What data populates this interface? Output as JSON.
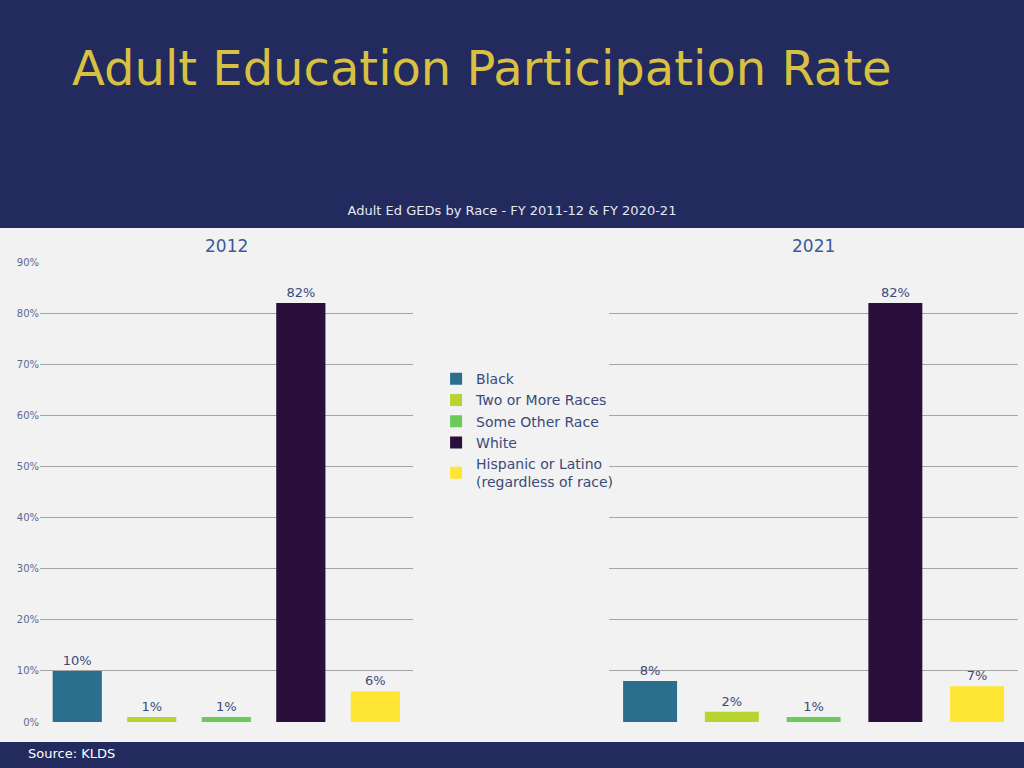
{
  "header": {
    "title": "Adult Education Participation Rate",
    "chart_title": "Adult Ed GEDs by Race - FY 2011-12 & FY 2020-21"
  },
  "chart_data": [
    {
      "type": "bar",
      "title": "2012",
      "categories": [
        "Black",
        "Two or More Races",
        "Some Other Race",
        "White",
        "Hispanic or Latino (regardless of race)"
      ],
      "values": [
        10,
        1,
        1,
        82,
        6
      ],
      "value_labels": [
        "10%",
        "1%",
        "1%",
        "82%",
        "6%"
      ],
      "colors": [
        "#2b6f8e",
        "#b8d430",
        "#6cc95c",
        "#2a0f3c",
        "#ffe634"
      ],
      "ylim": [
        0,
        90
      ],
      "yticks": [
        {
          "value": 0,
          "label": "0%"
        },
        {
          "value": 10,
          "label": "10%"
        },
        {
          "value": 20,
          "label": "20%"
        },
        {
          "value": 30,
          "label": "30%"
        },
        {
          "value": 40,
          "label": "40%"
        },
        {
          "value": 50,
          "label": "50%"
        },
        {
          "value": 60,
          "label": "60%"
        },
        {
          "value": 70,
          "label": "70%"
        },
        {
          "value": 80,
          "label": "80%"
        },
        {
          "value": 90,
          "label": "90%"
        }
      ],
      "grid": true,
      "data_labels": true,
      "tick_labels": "y",
      "legend": "right"
    },
    {
      "type": "bar",
      "title": "2021",
      "categories": [
        "Black",
        "Two or More Races",
        "Some Other Race",
        "White",
        "Hispanic or Latino (regardless of race)"
      ],
      "values": [
        8,
        2,
        1,
        82,
        7
      ],
      "value_labels": [
        "8%",
        "2%",
        "1%",
        "82%",
        "7%"
      ],
      "colors": [
        "#2b6f8e",
        "#b8d430",
        "#6cc95c",
        "#2a0f3c",
        "#ffe634"
      ],
      "ylim": [
        0,
        90
      ],
      "yticks": [
        0,
        10,
        20,
        30,
        40,
        50,
        60,
        70,
        80,
        90
      ],
      "grid": true,
      "data_labels": true,
      "tick_labels": false
    }
  ],
  "footer": {
    "source": "Source: KLDS"
  }
}
